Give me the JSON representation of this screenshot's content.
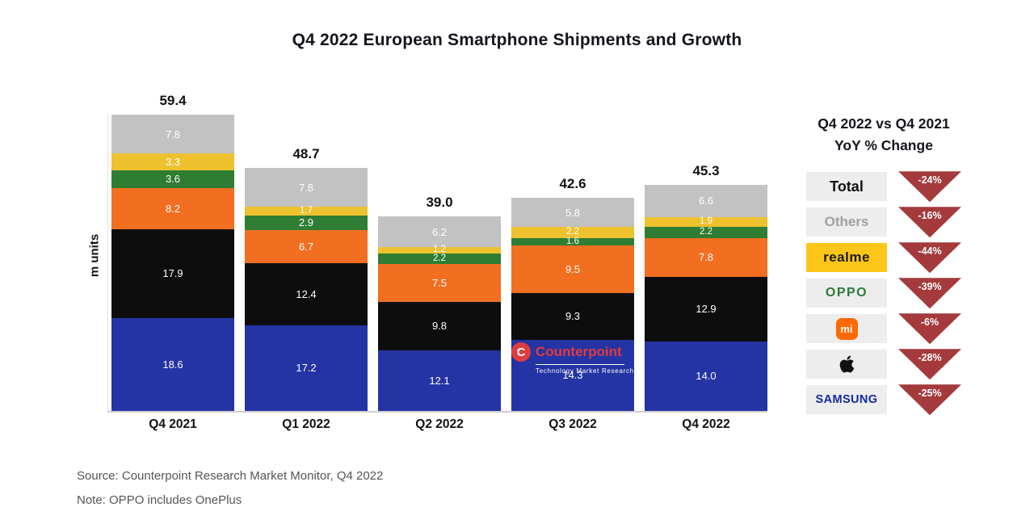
{
  "title": "Q4 2022 European Smartphone Shipments and Growth",
  "chart_data": {
    "type": "bar",
    "stacked": true,
    "title": "Q4 2022 European Smartphone Shipments and Growth",
    "ylabel": "m units",
    "ylim": [
      0,
      62
    ],
    "grid": false,
    "categories": [
      "Q4 2021",
      "Q1 2022",
      "Q2 2022",
      "Q3 2022",
      "Q4 2022"
    ],
    "totals": [
      59.4,
      48.7,
      39.0,
      42.6,
      45.3
    ],
    "series": [
      {
        "name": "Samsung",
        "color": "#2434a4",
        "values": [
          18.6,
          17.2,
          12.1,
          14.3,
          14.0
        ]
      },
      {
        "name": "Apple",
        "color": "#0d0d0d",
        "values": [
          17.9,
          12.4,
          9.8,
          9.3,
          12.9
        ]
      },
      {
        "name": "Xiaomi",
        "color": "#f26f21",
        "values": [
          8.2,
          6.7,
          7.5,
          9.5,
          7.8
        ]
      },
      {
        "name": "OPPO",
        "color": "#2e7d32",
        "values": [
          3.6,
          2.9,
          2.2,
          1.6,
          2.2
        ]
      },
      {
        "name": "realme",
        "color": "#eec12f",
        "values": [
          3.3,
          1.7,
          1.2,
          2.2,
          1.9
        ]
      },
      {
        "name": "Others",
        "color": "#c2c2c2",
        "values": [
          7.8,
          7.8,
          6.2,
          5.8,
          6.6
        ]
      }
    ]
  },
  "legend": {
    "title_line1": "Q4 2022 vs Q4 2021",
    "title_line2": "YoY % Change",
    "triangle_color": "#a43a3c",
    "rows": [
      {
        "brand": "Total",
        "kind": "total",
        "label": "Total",
        "change": "-24%"
      },
      {
        "brand": "Others",
        "kind": "others",
        "label": "Others",
        "change": "-16%"
      },
      {
        "brand": "realme",
        "kind": "realme",
        "label": "realme",
        "change": "-44%"
      },
      {
        "brand": "OPPO",
        "kind": "oppo",
        "label": "OPPO",
        "change": "-39%"
      },
      {
        "brand": "Xiaomi",
        "kind": "mi",
        "label": "mi",
        "change": "-6%"
      },
      {
        "brand": "Apple",
        "kind": "apple",
        "label": "",
        "change": "-28%"
      },
      {
        "brand": "Samsung",
        "kind": "samsung",
        "label": "SAMSUNG",
        "change": "-25%"
      }
    ]
  },
  "watermark": {
    "initial": "C",
    "name": "Counterpoint",
    "subtitle": "Technology Market Research"
  },
  "footer": {
    "source": "Source: Counterpoint Research Market Monitor, Q4 2022",
    "note": "Note: OPPO includes OnePlus"
  }
}
